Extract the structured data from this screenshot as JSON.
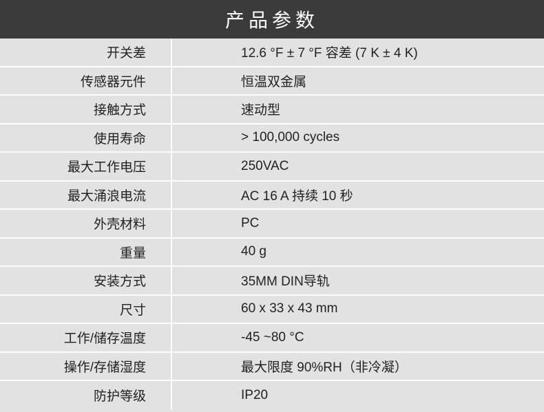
{
  "header": {
    "title": "产品参数"
  },
  "spec": {
    "rows": [
      {
        "label": "开关差",
        "value": "12.6 °F ± 7 °F 容差 (7 K ± 4 K)"
      },
      {
        "label": "传感器元件",
        "value": "恒温双金属"
      },
      {
        "label": "接触方式",
        "value": "速动型"
      },
      {
        "label": "使用寿命",
        "value": "> 100,000 cycles"
      },
      {
        "label": "最大工作电压",
        "value": "250VAC"
      },
      {
        "label": "最大涌浪电流",
        "value": "AC 16 A 持续 10 秒"
      },
      {
        "label": "外壳材料",
        "value": "PC"
      },
      {
        "label": "重量",
        "value": "40 g"
      },
      {
        "label": "安装方式",
        "value": "35MM DIN导轨"
      },
      {
        "label": "尺寸",
        "value": "60 x 33 x 43 mm"
      },
      {
        "label": "工作/储存温度",
        "value": "-45 ~80 °C"
      },
      {
        "label": "操作/存储湿度",
        "value": "最大限度 90%RH（非冷凝）"
      },
      {
        "label": "防护等级",
        "value": "IP20"
      }
    ]
  },
  "style": {
    "header_bg": "#3b3b3b",
    "header_fg": "#ffffff",
    "body_bg": "#e2e2e2",
    "divider": "#ffffff",
    "text_color": "#222222",
    "header_fontsize": 28,
    "cell_fontsize": 19,
    "row_height": 41.5,
    "label_col_width": 250
  }
}
